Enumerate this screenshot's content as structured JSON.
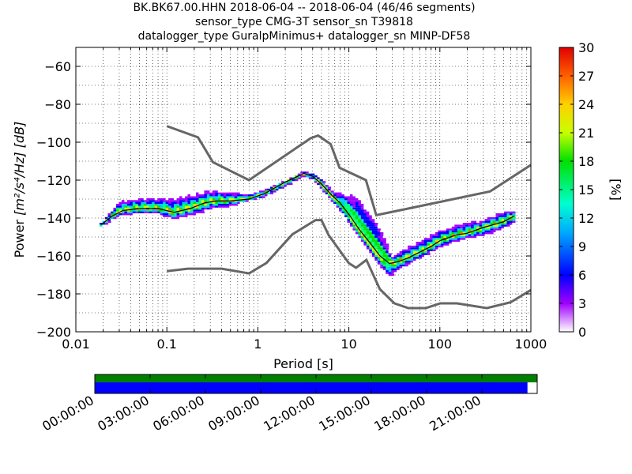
{
  "chart_data": {
    "type": "heatmap",
    "title_lines": [
      "BK.BK67.00.HHN   2018-06-04 -- 2018-06-04  (46/46 segments)",
      "sensor_type CMG-3T sensor_sn T39818",
      "datalogger_type GuralpMinimus+ datalogger_sn MINP-DF58"
    ],
    "xlabel": "Period [s]",
    "ylabel_prefix": "Power",
    "ylabel_unit": "[m²/s⁴/Hz] [dB]",
    "x_scale": "log",
    "xlim": [
      0.01,
      1000
    ],
    "ylim": [
      -200,
      -50
    ],
    "x_ticks": [
      {
        "value": 0.01,
        "label": "0.01"
      },
      {
        "value": 0.1,
        "label": "0.1"
      },
      {
        "value": 1,
        "label": "1"
      },
      {
        "value": 10,
        "label": "10"
      },
      {
        "value": 100,
        "label": "100"
      },
      {
        "value": 1000,
        "label": "1000"
      }
    ],
    "y_ticks": [
      {
        "value": -60,
        "label": "−60"
      },
      {
        "value": -80,
        "label": "−80"
      },
      {
        "value": -100,
        "label": "−100"
      },
      {
        "value": -120,
        "label": "−120"
      },
      {
        "value": -140,
        "label": "−140"
      },
      {
        "value": -160,
        "label": "−160"
      },
      {
        "value": -180,
        "label": "−180"
      },
      {
        "value": -200,
        "label": "−200"
      }
    ],
    "grid": "dotted",
    "colorbar": {
      "label": "[%]",
      "min": 0,
      "max": 30,
      "ticks": [
        {
          "value": 0,
          "label": "0"
        },
        {
          "value": 3,
          "label": "3"
        },
        {
          "value": 6,
          "label": "6"
        },
        {
          "value": 9,
          "label": "9"
        },
        {
          "value": 12,
          "label": "12"
        },
        {
          "value": 15,
          "label": "15"
        },
        {
          "value": 18,
          "label": "18"
        },
        {
          "value": 21,
          "label": "21"
        },
        {
          "value": 24,
          "label": "24"
        },
        {
          "value": 27,
          "label": "27"
        },
        {
          "value": 30,
          "label": "30"
        }
      ],
      "colormap": [
        "#ffffff",
        "#a000ff",
        "#0000ff",
        "#00c8ff",
        "#00ff80",
        "#00e000",
        "#c8ff00",
        "#ffd000",
        "#ff7000",
        "#e00000"
      ]
    },
    "nhnm": [
      [
        0.1,
        -91.5
      ],
      [
        0.22,
        -97.4
      ],
      [
        0.32,
        -110.5
      ],
      [
        0.8,
        -120
      ],
      [
        3.8,
        -97.9
      ],
      [
        4.6,
        -96.5
      ],
      [
        6.3,
        -101
      ],
      [
        7.9,
        -113.5
      ],
      [
        15.4,
        -120
      ],
      [
        20,
        -138.5
      ],
      [
        354.8,
        -126
      ],
      [
        1000,
        -112
      ]
    ],
    "nlnm": [
      [
        0.1,
        -168
      ],
      [
        0.17,
        -166.7
      ],
      [
        0.4,
        -166.7
      ],
      [
        0.8,
        -169.2
      ],
      [
        1.24,
        -163.7
      ],
      [
        2.4,
        -148.6
      ],
      [
        4.3,
        -141.1
      ],
      [
        5,
        -141.1
      ],
      [
        6,
        -149
      ],
      [
        10,
        -163.8
      ],
      [
        12,
        -166.2
      ],
      [
        15.6,
        -162.1
      ],
      [
        21.9,
        -177.5
      ],
      [
        31.6,
        -185
      ],
      [
        45,
        -187.5
      ],
      [
        70,
        -187.5
      ],
      [
        101,
        -185
      ],
      [
        154,
        -185
      ],
      [
        328,
        -187.5
      ],
      [
        600,
        -184.4
      ],
      [
        1000,
        -178
      ]
    ],
    "psd_mode": [
      [
        0.019,
        -143.5
      ],
      [
        0.025,
        -139
      ],
      [
        0.033,
        -136
      ],
      [
        0.05,
        -135
      ],
      [
        0.08,
        -135
      ],
      [
        0.12,
        -137
      ],
      [
        0.18,
        -135
      ],
      [
        0.26,
        -132
      ],
      [
        0.35,
        -131
      ],
      [
        0.5,
        -131
      ],
      [
        0.8,
        -130
      ],
      [
        1.2,
        -127
      ],
      [
        2,
        -121
      ],
      [
        3.2,
        -116.5
      ],
      [
        4,
        -118
      ],
      [
        5,
        -122
      ],
      [
        6.5,
        -128
      ],
      [
        8,
        -132
      ],
      [
        10,
        -138
      ],
      [
        13,
        -146
      ],
      [
        17,
        -153
      ],
      [
        22,
        -160
      ],
      [
        28,
        -164
      ],
      [
        35,
        -163
      ],
      [
        45,
        -161
      ],
      [
        60,
        -158
      ],
      [
        80,
        -155
      ],
      [
        100,
        -152
      ],
      [
        150,
        -149
      ],
      [
        200,
        -148
      ],
      [
        300,
        -145
      ],
      [
        500,
        -142
      ],
      [
        650,
        -139
      ]
    ],
    "psd_upper": [
      [
        0.019,
        -143
      ],
      [
        0.03,
        -131
      ],
      [
        0.05,
        -129
      ],
      [
        0.08,
        -129
      ],
      [
        0.12,
        -129
      ],
      [
        0.2,
        -127
      ],
      [
        0.3,
        -125
      ],
      [
        0.5,
        -126
      ],
      [
        0.8,
        -127
      ],
      [
        1.2,
        -125
      ],
      [
        2,
        -120
      ],
      [
        3.2,
        -115.5
      ],
      [
        4,
        -116
      ],
      [
        5,
        -119
      ],
      [
        7,
        -126
      ],
      [
        9,
        -127
      ],
      [
        13,
        -127
      ],
      [
        15,
        -132
      ],
      [
        20,
        -140
      ],
      [
        25,
        -150
      ],
      [
        30,
        -160
      ],
      [
        40,
        -156
      ],
      [
        60,
        -152
      ],
      [
        100,
        -146
      ],
      [
        200,
        -142
      ],
      [
        300,
        -141
      ],
      [
        500,
        -136
      ],
      [
        650,
        -136
      ]
    ],
    "psd_lower": [
      [
        0.019,
        -145
      ],
      [
        0.03,
        -139
      ],
      [
        0.05,
        -138
      ],
      [
        0.08,
        -138
      ],
      [
        0.12,
        -141
      ],
      [
        0.2,
        -139
      ],
      [
        0.3,
        -136
      ],
      [
        0.5,
        -134
      ],
      [
        0.8,
        -131
      ],
      [
        1.2,
        -129
      ],
      [
        2,
        -124
      ],
      [
        3.2,
        -118
      ],
      [
        4,
        -120
      ],
      [
        5,
        -125
      ],
      [
        7,
        -133
      ],
      [
        9,
        -139
      ],
      [
        12,
        -149
      ],
      [
        16,
        -157
      ],
      [
        22,
        -166
      ],
      [
        28,
        -172
      ],
      [
        35,
        -168
      ],
      [
        45,
        -165
      ],
      [
        60,
        -162
      ],
      [
        100,
        -156
      ],
      [
        200,
        -151
      ],
      [
        300,
        -150
      ],
      [
        500,
        -146
      ],
      [
        650,
        -143
      ]
    ],
    "timeline": {
      "tick_labels": [
        "00:00:00",
        "03:00:00",
        "06:00:00",
        "09:00:00",
        "12:00:00",
        "15:00:00",
        "18:00:00",
        "21:00:00"
      ],
      "green_fraction": 1.0,
      "blue_fraction": 0.978,
      "green_color": "#007f00",
      "blue_color": "#0000ff"
    }
  }
}
